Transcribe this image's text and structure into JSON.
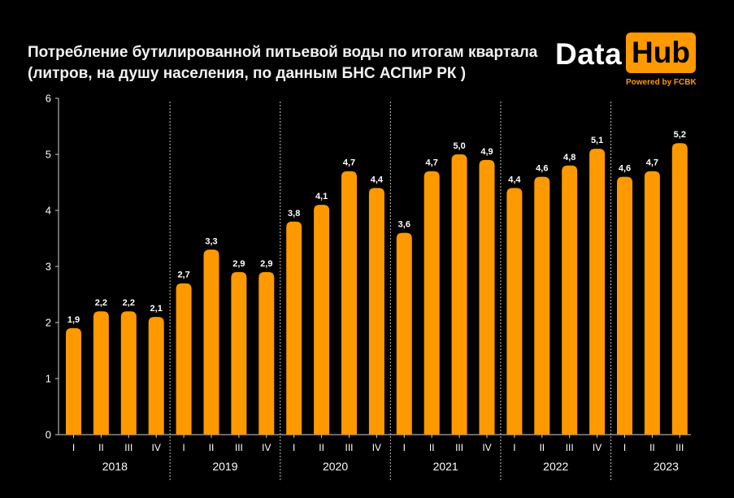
{
  "header": {
    "title_line1": "Потребление бутилированной питьевой воды по итогам квартала",
    "title_line2": "(литров, на душу населения, по данным БНС АСПиР РК )"
  },
  "logo": {
    "word1": "Data",
    "word2": "Hub",
    "tagline": "Powered by FCBK"
  },
  "colors": {
    "bar": "#ff9900",
    "background": "#000000",
    "text": "#ffffff",
    "brand_accent": "#ff9900"
  },
  "chart_data": {
    "type": "bar",
    "title": "Потребление бутилированной питьевой воды по итогам квартала (литров, на душу населения, по данным БНС АСПиР РК )",
    "xlabel": "",
    "ylabel": "",
    "ylim": [
      0,
      6
    ],
    "yticks": [
      "0",
      "1",
      "2",
      "3",
      "4",
      "5",
      "6"
    ],
    "grid": false,
    "legend": "none",
    "groups": [
      {
        "year": "2018",
        "quarters": [
          "I",
          "II",
          "III",
          "IV"
        ],
        "values": [
          1.9,
          2.2,
          2.2,
          2.1
        ],
        "labels": [
          "1,9",
          "2,2",
          "2,2",
          "2,1"
        ]
      },
      {
        "year": "2019",
        "quarters": [
          "I",
          "II",
          "III",
          "IV"
        ],
        "values": [
          2.7,
          3.3,
          2.9,
          2.9
        ],
        "labels": [
          "2,7",
          "3,3",
          "2,9",
          "2,9"
        ]
      },
      {
        "year": "2020",
        "quarters": [
          "I",
          "II",
          "III",
          "IV"
        ],
        "values": [
          3.8,
          4.1,
          4.7,
          4.4
        ],
        "labels": [
          "3,8",
          "4,1",
          "4,7",
          "4,4"
        ]
      },
      {
        "year": "2021",
        "quarters": [
          "I",
          "II",
          "III",
          "IV"
        ],
        "values": [
          3.6,
          4.7,
          5.0,
          4.9
        ],
        "labels": [
          "3,6",
          "4,7",
          "5,0",
          "4,9"
        ]
      },
      {
        "year": "2022",
        "quarters": [
          "I",
          "II",
          "III",
          "IV"
        ],
        "values": [
          4.4,
          4.6,
          4.8,
          5.1
        ],
        "labels": [
          "4,4",
          "4,6",
          "4,8",
          "5,1"
        ]
      },
      {
        "year": "2023",
        "quarters": [
          "I",
          "II",
          "III"
        ],
        "values": [
          4.6,
          4.7,
          5.2
        ],
        "labels": [
          "4,6",
          "4,7",
          "5,2"
        ]
      }
    ]
  }
}
